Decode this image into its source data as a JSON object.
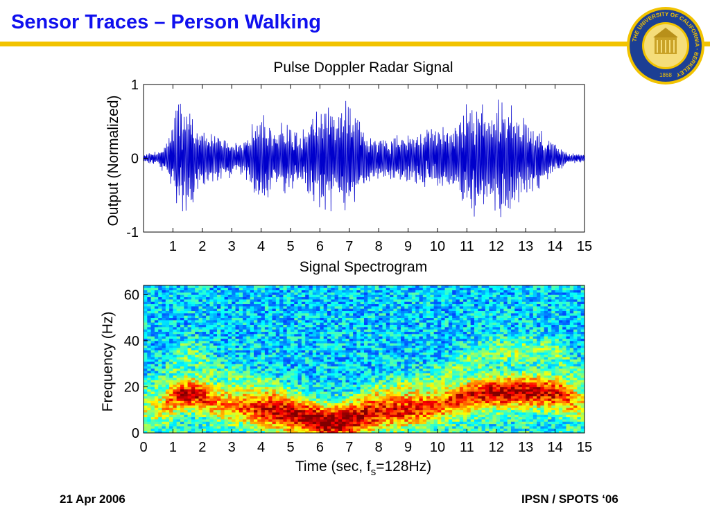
{
  "slide": {
    "title": "Sensor Traces – Person Walking",
    "footer_left": "21 Apr 2006",
    "footer_right": "IPSN / SPOTS ‘06",
    "accent_color": "#f2c300",
    "title_color": "#1010ee"
  },
  "logo": {
    "icon": "uc-berkeley-seal-icon",
    "text_top": "THE UNIVERSITY OF CALIFORNIA · BERKELEY",
    "text_year": "1868"
  },
  "chart_data": [
    {
      "type": "line",
      "title": "Pulse Doppler Radar Signal",
      "xlabel": "",
      "ylabel": "Output (Normalized)",
      "xlim": [
        0,
        15
      ],
      "ylim": [
        -1,
        1
      ],
      "xticks": [
        "1",
        "2",
        "3",
        "4",
        "5",
        "6",
        "7",
        "8",
        "9",
        "10",
        "11",
        "12",
        "13",
        "14",
        "15"
      ],
      "yticks": [
        "1",
        "0",
        "-1"
      ],
      "line_color": "#0000cc",
      "grid": false,
      "envelope": {
        "t": [
          0,
          0.5,
          0.9,
          1.2,
          1.5,
          1.8,
          2.2,
          2.7,
          3.2,
          3.5,
          3.9,
          4.1,
          4.4,
          4.7,
          5.0,
          5.3,
          5.6,
          6.0,
          6.3,
          6.6,
          6.9,
          7.2,
          7.5,
          7.8,
          8.1,
          8.5,
          8.9,
          9.3,
          9.7,
          10.1,
          10.5,
          10.8,
          11.0,
          11.2,
          11.5,
          11.8,
          12.0,
          12.3,
          12.6,
          12.9,
          13.2,
          13.5,
          13.9,
          14.2,
          14.5,
          15.0
        ],
        "amp": [
          0.05,
          0.1,
          0.3,
          0.8,
          0.8,
          0.45,
          0.35,
          0.3,
          0.22,
          0.3,
          0.6,
          0.65,
          0.35,
          0.5,
          0.45,
          0.3,
          0.5,
          0.7,
          0.75,
          0.55,
          0.8,
          0.6,
          0.4,
          0.3,
          0.25,
          0.3,
          0.35,
          0.35,
          0.4,
          0.4,
          0.45,
          0.6,
          0.8,
          0.8,
          0.75,
          0.6,
          0.8,
          0.8,
          0.8,
          0.55,
          0.45,
          0.4,
          0.2,
          0.15,
          0.08,
          0.05
        ]
      }
    },
    {
      "type": "heatmap",
      "title": "Signal Spectrogram",
      "xlabel": "Time (sec, f",
      "xlabel_sub": "s",
      "xlabel_tail": "=128Hz)",
      "ylabel": "Frequency (Hz)",
      "xlim": [
        0,
        15
      ],
      "ylim": [
        0,
        64
      ],
      "xticks": [
        "0",
        "1",
        "2",
        "3",
        "4",
        "5",
        "6",
        "7",
        "8",
        "9",
        "10",
        "11",
        "12",
        "13",
        "14",
        "15"
      ],
      "yticks": [
        "60",
        "40",
        "20",
        "0"
      ],
      "colormap": "jet",
      "ridge": {
        "t": [
          0,
          0.7,
          1.2,
          1.8,
          2.5,
          3.5,
          4.5,
          5.5,
          6.2,
          7.0,
          8.0,
          9.0,
          10.0,
          10.8,
          11.5,
          12.5,
          13.5,
          14.2,
          15.0
        ],
        "freq": [
          10,
          12,
          17,
          17,
          13,
          11,
          9,
          6,
          4,
          5,
          9,
          10,
          12,
          15,
          17,
          18,
          18,
          17,
          12
        ],
        "strength": [
          0.3,
          0.5,
          0.9,
          0.9,
          0.6,
          0.7,
          0.9,
          0.85,
          0.85,
          0.85,
          0.8,
          0.8,
          0.7,
          0.85,
          0.9,
          1.0,
          0.95,
          0.85,
          0.4
        ]
      }
    }
  ]
}
